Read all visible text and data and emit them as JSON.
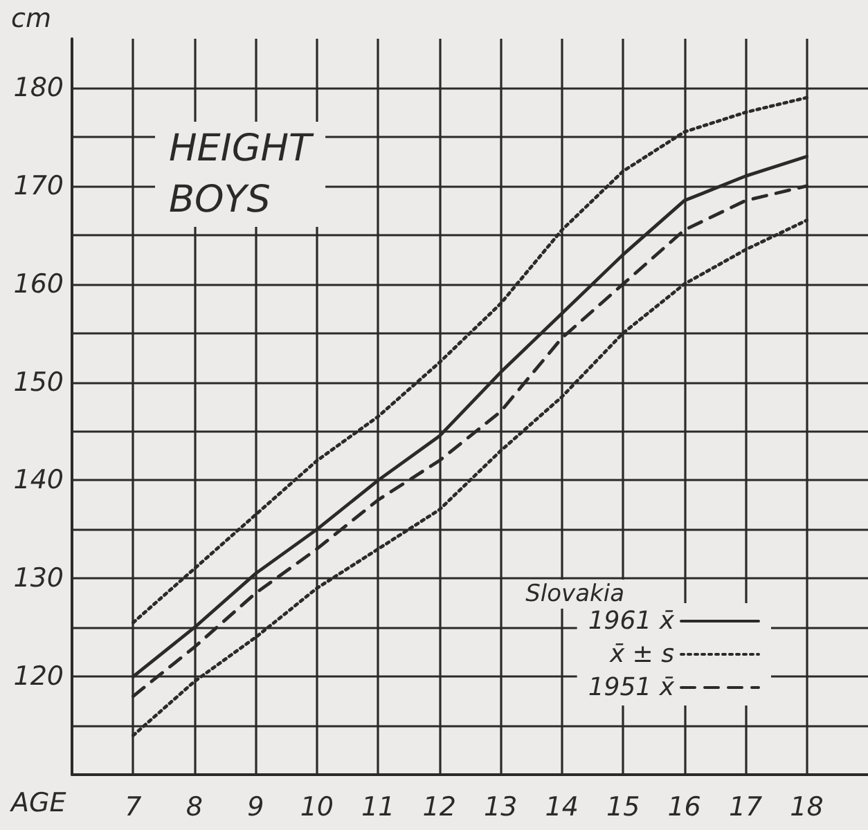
{
  "chart_data": {
    "type": "line",
    "title": "HEIGHT",
    "subtitle": "BOYS",
    "xlabel": "AGE",
    "ylabel": "cm",
    "legend_title": "Slovakia",
    "x": [
      7,
      8,
      9,
      10,
      11,
      12,
      13,
      14,
      15,
      16,
      17,
      18
    ],
    "series": [
      {
        "name": "1961 x̄",
        "color": "#2a2a2a",
        "line_style": "solid",
        "values": [
          120,
          125,
          130.5,
          135,
          140,
          144.5,
          151,
          157,
          163,
          168.5,
          171,
          173
        ]
      },
      {
        "name": "x̄ ± s",
        "color": "#2a2a2a",
        "line_style": "dotted",
        "values": [
          125.5,
          131,
          136.5,
          142,
          146.5,
          152,
          158,
          165.5,
          171.5,
          175.5,
          177.5,
          179
        ]
      },
      {
        "color": "#2a2a2a",
        "line_style": "dotted",
        "values": [
          114,
          119.5,
          124,
          129,
          133,
          137,
          143,
          148.5,
          155,
          160,
          163.5,
          166.5
        ]
      },
      {
        "name": "1951 x̄",
        "color": "#2a2a2a",
        "line_style": "dashed",
        "values": [
          118,
          123,
          128.5,
          133,
          138,
          142,
          147,
          154.5,
          160,
          165.5,
          168.5,
          170
        ]
      }
    ],
    "xlim": [
      6,
      19
    ],
    "xticks": [
      7,
      8,
      9,
      10,
      11,
      12,
      13,
      14,
      15,
      16,
      17,
      18
    ],
    "ylim": [
      110,
      185
    ],
    "yticks": [
      {
        "value": 115,
        "label": null
      },
      120,
      {
        "value": 125,
        "label": null
      },
      130,
      {
        "value": 135,
        "label": null
      },
      140,
      {
        "value": 145,
        "label": null
      },
      150,
      {
        "value": 155,
        "label": null
      },
      160,
      {
        "value": 165,
        "label": null
      },
      170,
      {
        "value": 175,
        "label": null
      },
      180
    ],
    "grid": true,
    "legend": "bottom right",
    "marker": "none"
  }
}
